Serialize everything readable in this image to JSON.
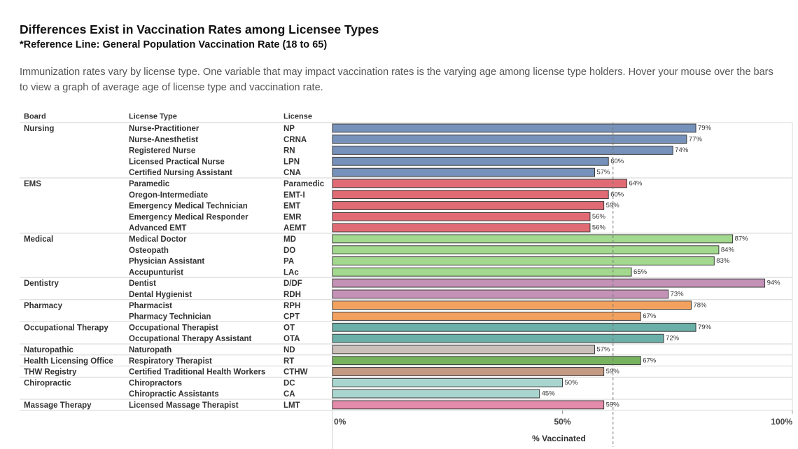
{
  "title": "Differences Exist in Vaccination Rates among Licensee Types",
  "subtitle": "*Reference Line: General Population Vaccination Rate (18 to 65)",
  "description": "Immunization rates vary by license type. One variable that may impact vaccination rates is the varying age among license type holders. Hover your mouse over the bars to view a graph of average age of license type and vaccination rate.",
  "columns": {
    "board": "Board",
    "license_type": "License Type",
    "license": "License"
  },
  "chart_data": {
    "type": "bar",
    "orientation": "horizontal",
    "xlabel": "% Vaccinated",
    "xlim": [
      0,
      100
    ],
    "x_ticks": [
      "0%",
      "50%",
      "100%"
    ],
    "reference_line": 61,
    "groups": [
      {
        "board": "Nursing",
        "color": "#7692ba",
        "rows": [
          {
            "type": "Nurse-Practitioner",
            "license": "NP",
            "value": 79
          },
          {
            "type": "Nurse-Anesthetist",
            "license": "CRNA",
            "value": 77
          },
          {
            "type": "Registered Nurse",
            "license": "RN",
            "value": 74
          },
          {
            "type": "Licensed Practical Nurse",
            "license": "LPN",
            "value": 60
          },
          {
            "type": "Certified Nursing Assistant",
            "license": "CNA",
            "value": 57
          }
        ]
      },
      {
        "board": "EMS",
        "color": "#e16b74",
        "rows": [
          {
            "type": "Paramedic",
            "license": "Paramedic",
            "value": 64
          },
          {
            "type": "Oregon-Intermediate",
            "license": "EMT-I",
            "value": 60
          },
          {
            "type": "Emergency Medical Technician",
            "license": "EMT",
            "value": 59
          },
          {
            "type": "Emergency Medical Responder",
            "license": "EMR",
            "value": 56
          },
          {
            "type": "Advanced EMT",
            "license": "AEMT",
            "value": 56
          }
        ]
      },
      {
        "board": "Medical",
        "color": "#a3d98e",
        "rows": [
          {
            "type": "Medical Doctor",
            "license": "MD",
            "value": 87
          },
          {
            "type": "Osteopath",
            "license": "DO",
            "value": 84
          },
          {
            "type": "Physician Assistant",
            "license": "PA",
            "value": 83
          },
          {
            "type": "Accupunturist",
            "license": "LAc",
            "value": 65
          }
        ]
      },
      {
        "board": "Dentistry",
        "color": "#c592b7",
        "rows": [
          {
            "type": "Dentist",
            "license": "D/DF",
            "value": 94
          },
          {
            "type": "Dental Hygienist",
            "license": "RDH",
            "value": 73
          }
        ]
      },
      {
        "board": "Pharmacy",
        "color": "#f2a25e",
        "rows": [
          {
            "type": "Pharmacist",
            "license": "RPH",
            "value": 78
          },
          {
            "type": "Pharmacy Technician",
            "license": "CPT",
            "value": 67
          }
        ]
      },
      {
        "board": "Occupational Therapy",
        "color": "#6ab0a8",
        "rows": [
          {
            "type": "Occupational Therapist",
            "license": "OT",
            "value": 79
          },
          {
            "type": "Occupational Therapy Assistant",
            "license": "OTA",
            "value": 72
          }
        ]
      },
      {
        "board": "Naturopathic",
        "color": "#cbbfb9",
        "rows": [
          {
            "type": "Naturopath",
            "license": "ND",
            "value": 57
          }
        ]
      },
      {
        "board": "Health Licensing Office",
        "color": "#77b35f",
        "rows": [
          {
            "type": "Respiratory Therapist",
            "license": "RT",
            "value": 67
          }
        ]
      },
      {
        "board": "THW Registry",
        "color": "#c49a82",
        "rows": [
          {
            "type": "Certified Traditional Health Workers",
            "license": "CTHW",
            "value": 59
          }
        ]
      },
      {
        "board": "Chiropractic",
        "color": "#a8d6cf",
        "rows": [
          {
            "type": "Chiropractors",
            "license": "DC",
            "value": 50
          },
          {
            "type": "Chiropractic Assistants",
            "license": "CA",
            "value": 45
          }
        ]
      },
      {
        "board": "Massage Therapy",
        "color": "#e48aaa",
        "rows": [
          {
            "type": "Licensed Massage Therapist",
            "license": "LMT",
            "value": 59
          }
        ]
      }
    ]
  }
}
